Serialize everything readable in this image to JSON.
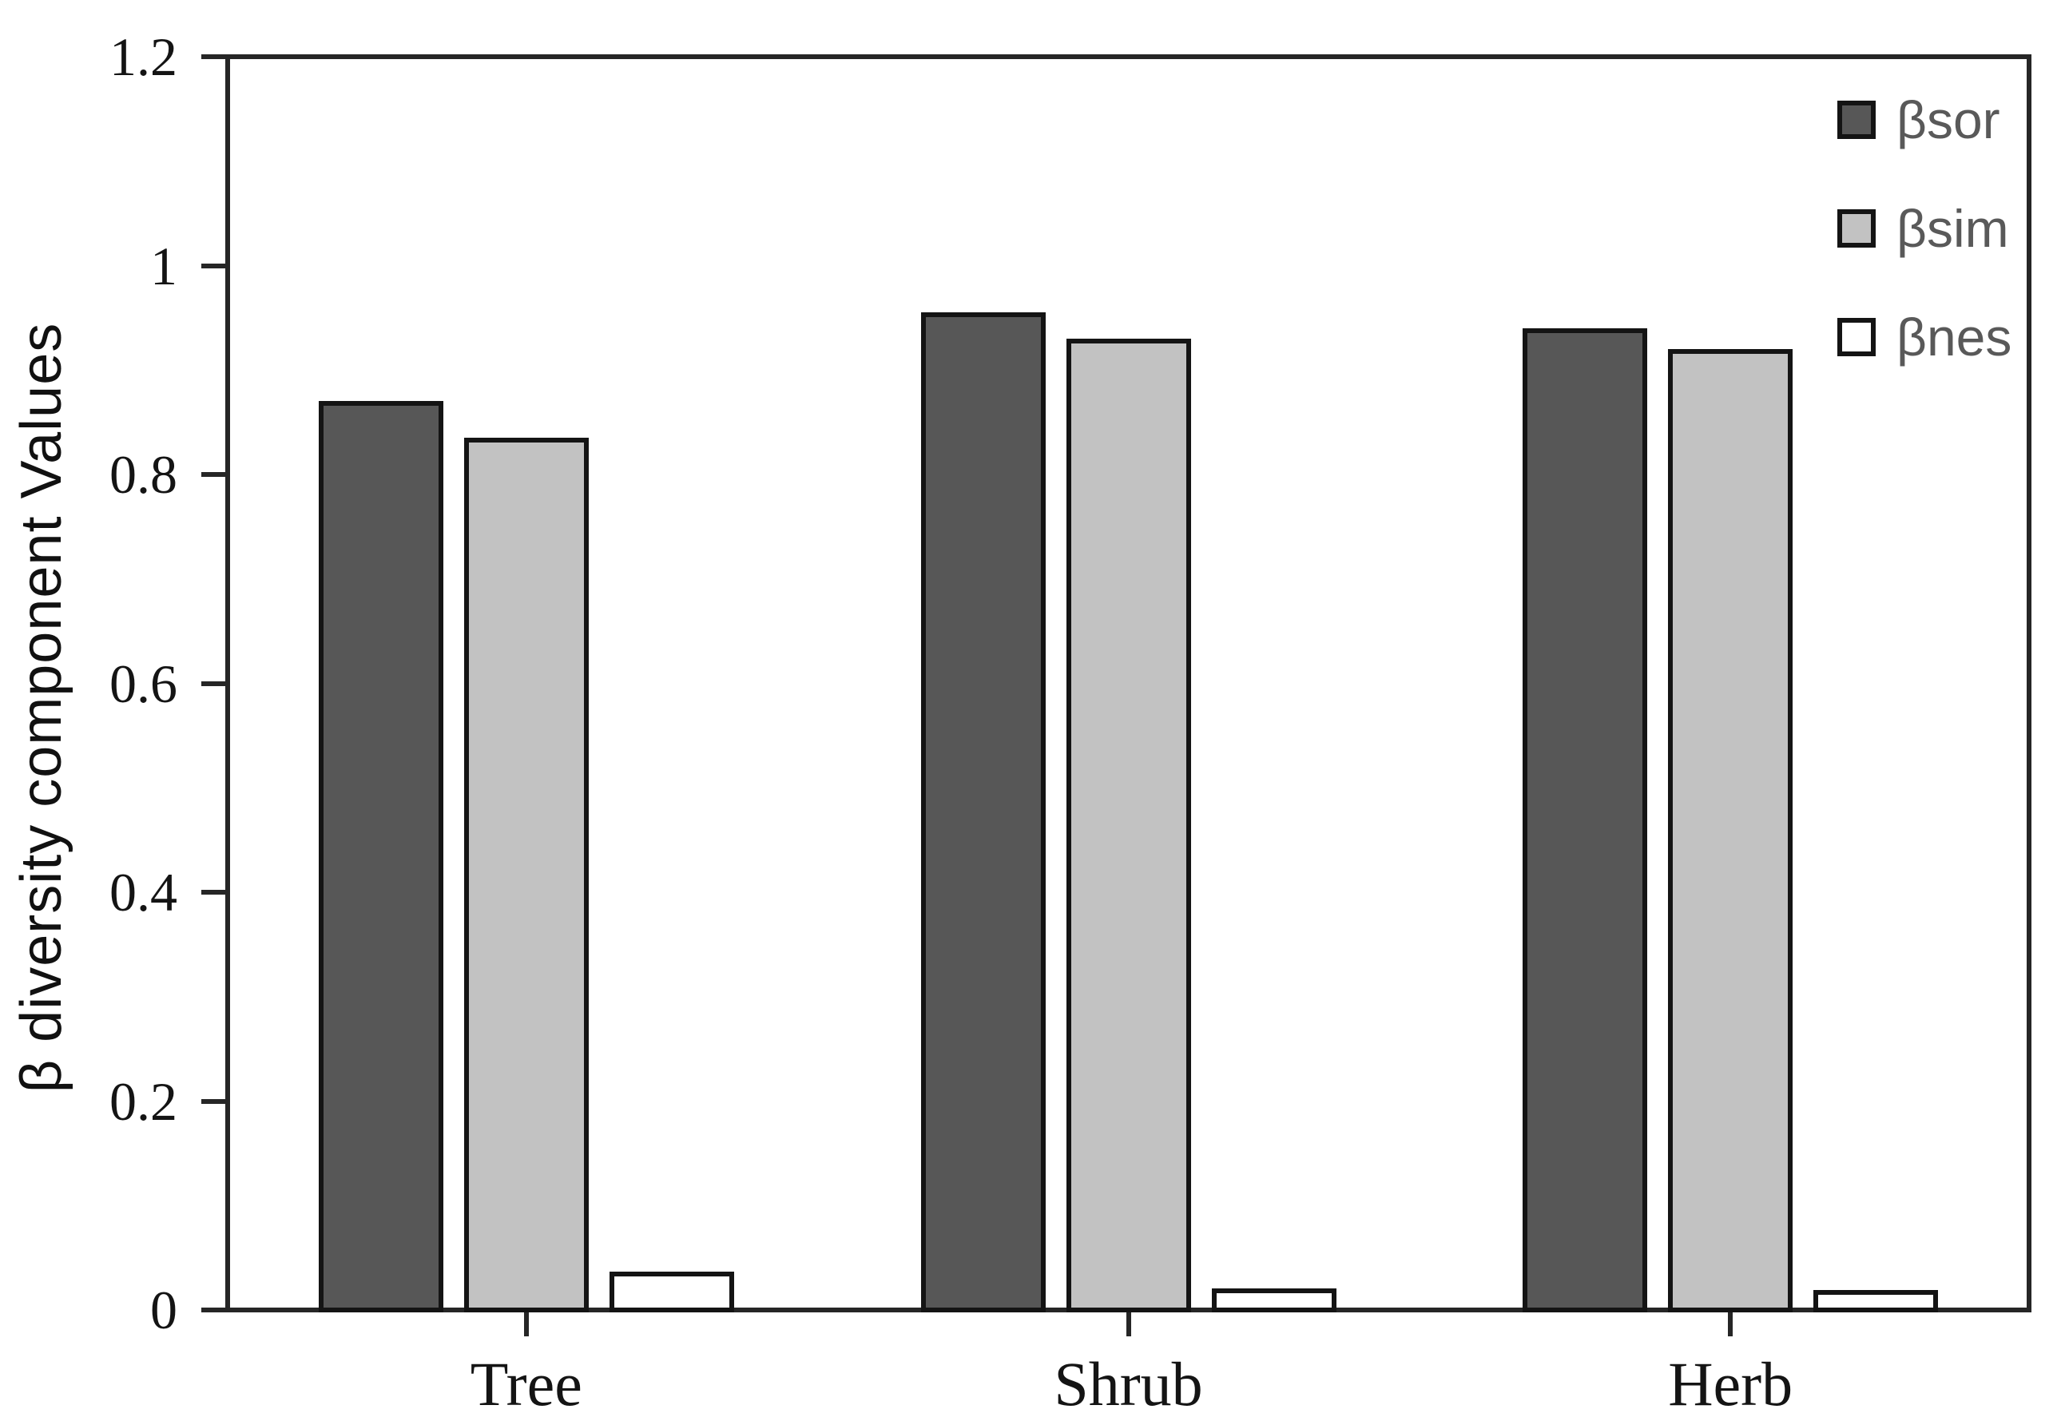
{
  "chart_data": {
    "type": "bar",
    "title": "",
    "xlabel": "",
    "ylabel": "β diversity component Values",
    "categories": [
      "Tree",
      "Shrub",
      "Herb"
    ],
    "series": [
      {
        "name": "βsor",
        "fill": "#575757",
        "values": [
          0.87,
          0.955,
          0.94
        ]
      },
      {
        "name": "βsim",
        "fill": "#c2c2c2",
        "values": [
          0.835,
          0.93,
          0.92
        ]
      },
      {
        "name": "βnes",
        "fill": "#ffffff",
        "values": [
          0.037,
          0.021,
          0.019
        ]
      }
    ],
    "ylim": [
      0,
      1.2
    ],
    "ytick_interval": 0.2,
    "ytick_labels": [
      "0",
      "0.2",
      "0.4",
      "0.6",
      "0.8",
      "1",
      "1.2"
    ],
    "grid": false,
    "legend_position": "top-right",
    "colors": {
      "bar_border": "#141414",
      "axis": "#262626",
      "tick_label": "#141414",
      "axis_title": "#111111",
      "legend_text": "#595959",
      "background": "#ffffff"
    }
  }
}
